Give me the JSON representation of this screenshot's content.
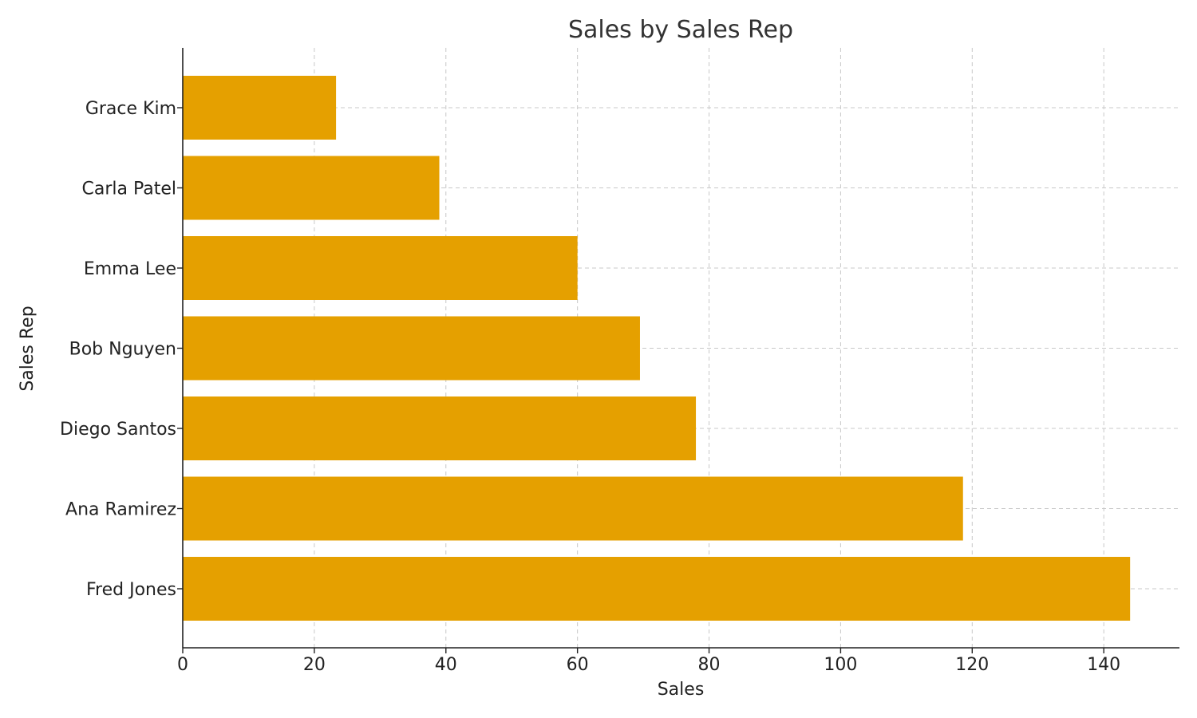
{
  "chart_data": {
    "type": "bar",
    "orientation": "horizontal",
    "title": "Sales by Sales Rep",
    "xlabel": "Sales",
    "ylabel": "Sales Rep",
    "categories": [
      "Fred Jones",
      "Ana Ramirez",
      "Diego Santos",
      "Bob Nguyen",
      "Emma Lee",
      "Carla Patel",
      "Grace Kim"
    ],
    "values": [
      144,
      118.6,
      78,
      69.5,
      60,
      39,
      23.3
    ],
    "xlim": [
      0,
      151.5
    ],
    "xticks": [
      0,
      20,
      40,
      60,
      80,
      100,
      120,
      140
    ],
    "grid": true,
    "bar_color": "#E5A000",
    "grid_color": "#c8c8c8",
    "legend": "none"
  }
}
